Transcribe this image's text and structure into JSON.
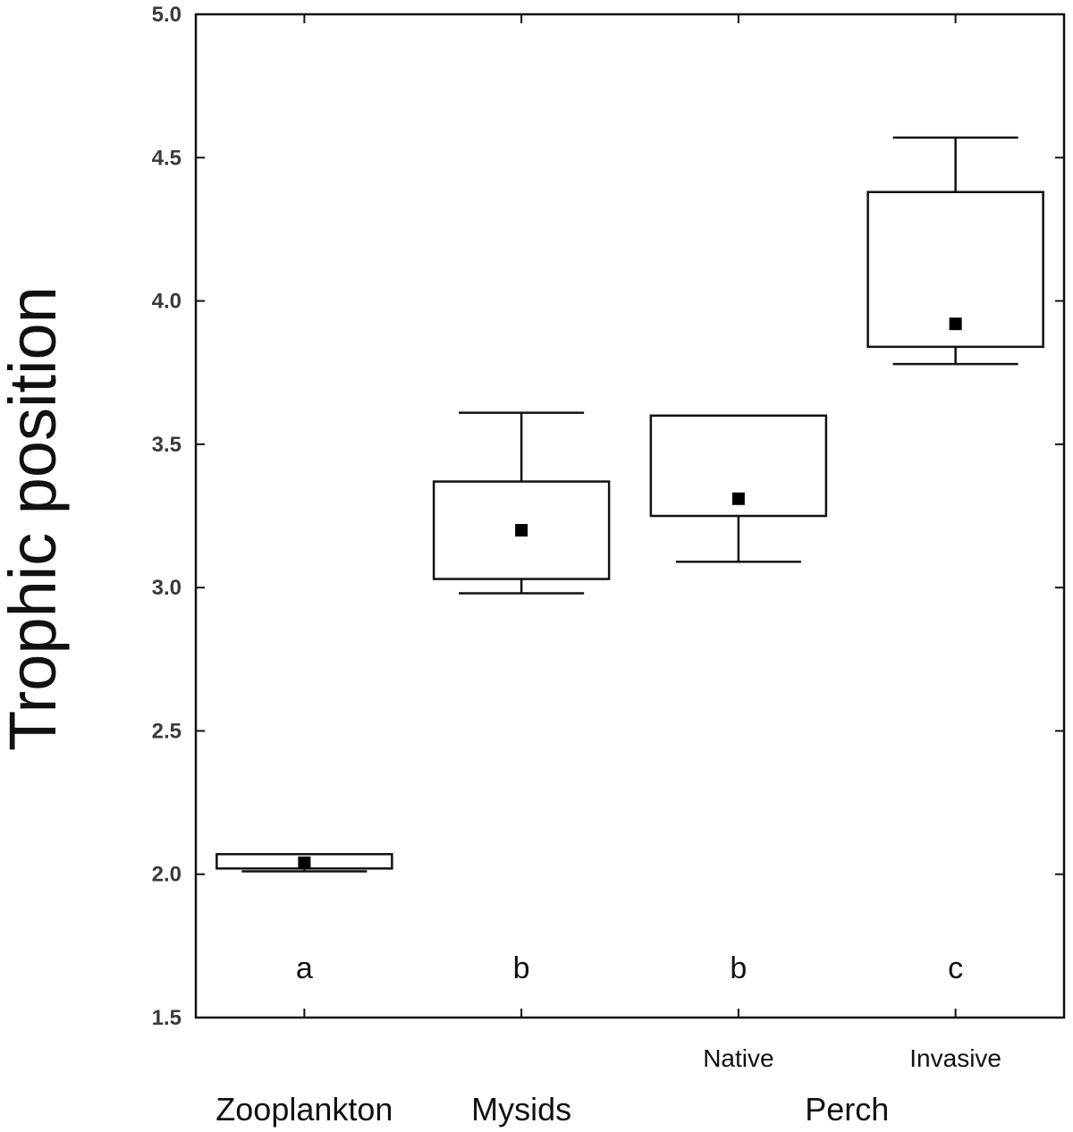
{
  "chart_data": {
    "type": "box",
    "title": "",
    "ylabel": "Trophic position",
    "xlabel": "",
    "ylim": [
      1.5,
      5.0
    ],
    "yticks": [
      "1.5",
      "2.0",
      "2.5",
      "3.0",
      "3.5",
      "4.0",
      "4.5",
      "5.0"
    ],
    "grid": false,
    "categories": [
      "Zooplankton",
      "Mysids",
      "Native",
      "Invasive"
    ],
    "group_labels": [
      {
        "label": "Zooplankton",
        "covers": [
          "Zooplankton"
        ]
      },
      {
        "label": "Mysids",
        "covers": [
          "Mysids"
        ]
      },
      {
        "label": "Perch",
        "covers": [
          "Native",
          "Invasive"
        ]
      }
    ],
    "sub_labels": [
      {
        "category": "Native",
        "label": "Native"
      },
      {
        "category": "Invasive",
        "label": "Invasive"
      }
    ],
    "boxes": [
      {
        "category": "Zooplankton",
        "whisker_low": 2.01,
        "box_low": 2.02,
        "center": 2.04,
        "box_high": 2.07,
        "whisker_high": 2.07,
        "letter": "a"
      },
      {
        "category": "Mysids",
        "whisker_low": 2.98,
        "box_low": 3.03,
        "center": 3.2,
        "box_high": 3.37,
        "whisker_high": 3.61,
        "letter": "b"
      },
      {
        "category": "Native",
        "whisker_low": 3.09,
        "box_low": 3.25,
        "center": 3.31,
        "box_high": 3.6,
        "whisker_high": 3.6,
        "letter": "b"
      },
      {
        "category": "Invasive",
        "whisker_low": 3.78,
        "box_low": 3.84,
        "center": 3.92,
        "box_high": 4.38,
        "whisker_high": 4.57,
        "letter": "c"
      }
    ]
  },
  "colors": {
    "stroke": "#111111",
    "marker": "#000000",
    "tick_label": "#3a3a3a"
  }
}
